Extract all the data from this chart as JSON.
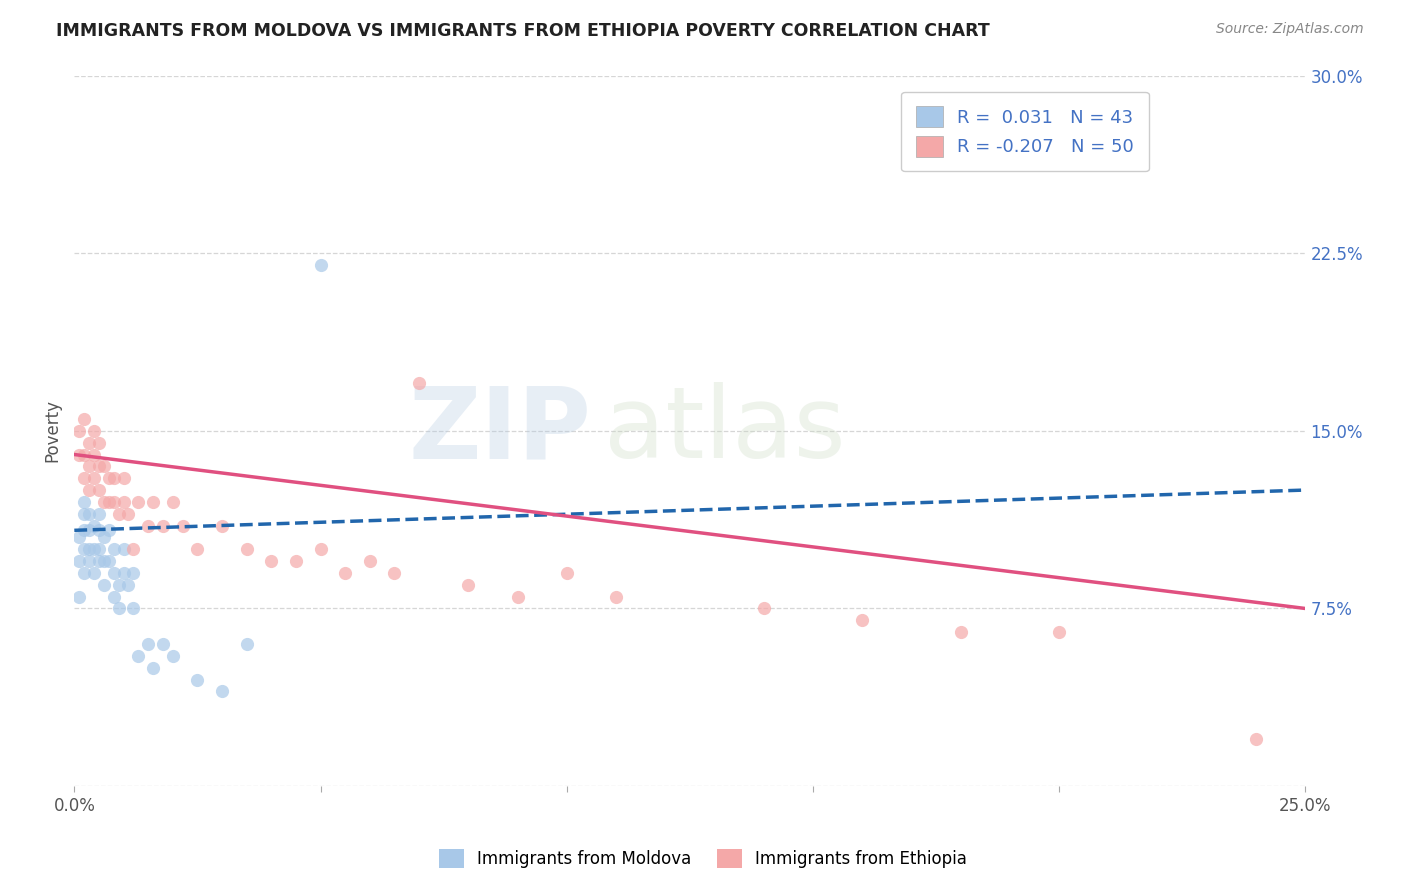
{
  "title": "IMMIGRANTS FROM MOLDOVA VS IMMIGRANTS FROM ETHIOPIA POVERTY CORRELATION CHART",
  "source": "Source: ZipAtlas.com",
  "ylabel": "Poverty",
  "xlim": [
    0.0,
    0.25
  ],
  "ylim": [
    0.0,
    0.3
  ],
  "xtick_positions": [
    0.0,
    0.05,
    0.1,
    0.15,
    0.2,
    0.25
  ],
  "xticklabels": [
    "0.0%",
    "",
    "",
    "",
    "",
    "25.0%"
  ],
  "ytick_positions": [
    0.0,
    0.075,
    0.15,
    0.225,
    0.3
  ],
  "yticklabels_right": [
    "",
    "7.5%",
    "15.0%",
    "22.5%",
    "30.0%"
  ],
  "moldova_color": "#a8c8e8",
  "ethiopia_color": "#f4a8a8",
  "moldova_line_color": "#2166ac",
  "ethiopia_line_color": "#e05080",
  "moldova_line_style": "--",
  "ethiopia_line_style": "-",
  "moldova_R": 0.031,
  "moldova_N": 43,
  "ethiopia_R": -0.207,
  "ethiopia_N": 50,
  "moldova_line_start_y": 0.108,
  "moldova_line_end_y": 0.125,
  "ethiopia_line_start_y": 0.14,
  "ethiopia_line_end_y": 0.075,
  "moldova_points_x": [
    0.001,
    0.001,
    0.001,
    0.002,
    0.002,
    0.002,
    0.002,
    0.002,
    0.003,
    0.003,
    0.003,
    0.003,
    0.004,
    0.004,
    0.004,
    0.005,
    0.005,
    0.005,
    0.005,
    0.006,
    0.006,
    0.006,
    0.007,
    0.007,
    0.008,
    0.008,
    0.008,
    0.009,
    0.009,
    0.01,
    0.01,
    0.011,
    0.012,
    0.012,
    0.013,
    0.015,
    0.016,
    0.018,
    0.02,
    0.025,
    0.03,
    0.035,
    0.05
  ],
  "moldova_points_y": [
    0.08,
    0.095,
    0.105,
    0.09,
    0.1,
    0.108,
    0.115,
    0.12,
    0.095,
    0.1,
    0.108,
    0.115,
    0.09,
    0.1,
    0.11,
    0.095,
    0.1,
    0.108,
    0.115,
    0.085,
    0.095,
    0.105,
    0.095,
    0.108,
    0.08,
    0.09,
    0.1,
    0.075,
    0.085,
    0.09,
    0.1,
    0.085,
    0.075,
    0.09,
    0.055,
    0.06,
    0.05,
    0.06,
    0.055,
    0.045,
    0.04,
    0.06,
    0.22
  ],
  "ethiopia_points_x": [
    0.001,
    0.001,
    0.002,
    0.002,
    0.002,
    0.003,
    0.003,
    0.003,
    0.004,
    0.004,
    0.004,
    0.005,
    0.005,
    0.005,
    0.006,
    0.006,
    0.007,
    0.007,
    0.008,
    0.008,
    0.009,
    0.01,
    0.01,
    0.011,
    0.012,
    0.013,
    0.015,
    0.016,
    0.018,
    0.02,
    0.022,
    0.025,
    0.03,
    0.035,
    0.04,
    0.045,
    0.05,
    0.055,
    0.06,
    0.065,
    0.07,
    0.08,
    0.09,
    0.1,
    0.11,
    0.14,
    0.16,
    0.18,
    0.2,
    0.24
  ],
  "ethiopia_points_y": [
    0.14,
    0.15,
    0.13,
    0.14,
    0.155,
    0.125,
    0.135,
    0.145,
    0.13,
    0.14,
    0.15,
    0.125,
    0.135,
    0.145,
    0.12,
    0.135,
    0.12,
    0.13,
    0.12,
    0.13,
    0.115,
    0.12,
    0.13,
    0.115,
    0.1,
    0.12,
    0.11,
    0.12,
    0.11,
    0.12,
    0.11,
    0.1,
    0.11,
    0.1,
    0.095,
    0.095,
    0.1,
    0.09,
    0.095,
    0.09,
    0.17,
    0.085,
    0.08,
    0.09,
    0.08,
    0.075,
    0.07,
    0.065,
    0.065,
    0.02
  ],
  "grid_color": "#cccccc",
  "background_color": "#ffffff",
  "tick_label_color": "#4472c4",
  "watermark_text": "ZIP",
  "watermark_text2": "atlas"
}
